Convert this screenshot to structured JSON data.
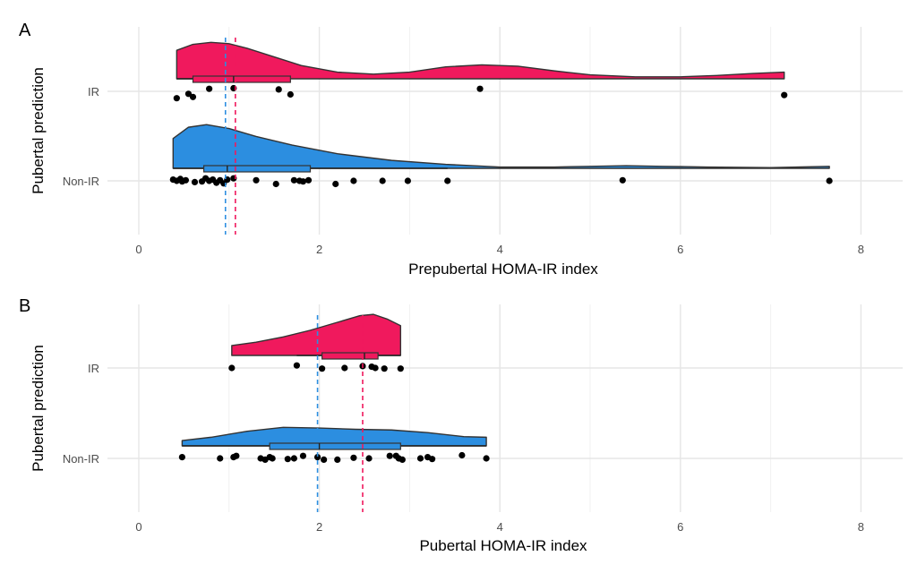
{
  "chart_data": [
    {
      "type": "raincloud",
      "panel_label": "A",
      "xlabel": "Prepubertal HOMA-IR index",
      "ylabel": "Pubertal prediction",
      "xlim": [
        -0.4,
        8.4
      ],
      "xticks": [
        0,
        2,
        4,
        6,
        8
      ],
      "categories": [
        "IR",
        "Non-IR"
      ],
      "grid": true,
      "series": [
        {
          "name": "IR",
          "color": "#f0195d",
          "density": [
            [
              0.42,
              0.43
            ],
            [
              0.6,
              0.52
            ],
            [
              0.8,
              0.55
            ],
            [
              1.0,
              0.53
            ],
            [
              1.2,
              0.46
            ],
            [
              1.5,
              0.33
            ],
            [
              1.8,
              0.2
            ],
            [
              2.2,
              0.1
            ],
            [
              2.6,
              0.07
            ],
            [
              3.0,
              0.1
            ],
            [
              3.4,
              0.18
            ],
            [
              3.8,
              0.21
            ],
            [
              4.2,
              0.19
            ],
            [
              4.6,
              0.12
            ],
            [
              5.0,
              0.06
            ],
            [
              5.5,
              0.03
            ],
            [
              6.0,
              0.03
            ],
            [
              6.4,
              0.05
            ],
            [
              6.8,
              0.08
            ],
            [
              7.15,
              0.1
            ]
          ],
          "box": {
            "q1": 0.6,
            "median": 1.05,
            "q3": 1.68,
            "whisker_low": 0.42,
            "whisker_high": 1.68
          },
          "points": [
            0.42,
            0.55,
            0.6,
            0.78,
            1.05,
            1.55,
            1.68,
            3.78,
            7.15
          ],
          "jitter": [
            0.55,
            0.2,
            0.45,
            -0.2,
            -0.25,
            -0.15,
            0.25,
            -0.2,
            0.3
          ],
          "mean_line": 1.07
        },
        {
          "name": "Non-IR",
          "color": "#2c8ee0",
          "density": [
            [
              0.38,
              0.45
            ],
            [
              0.55,
              0.62
            ],
            [
              0.75,
              0.66
            ],
            [
              1.0,
              0.6
            ],
            [
              1.3,
              0.48
            ],
            [
              1.7,
              0.35
            ],
            [
              2.2,
              0.22
            ],
            [
              2.8,
              0.12
            ],
            [
              3.4,
              0.06
            ],
            [
              4.0,
              0.02
            ],
            [
              4.6,
              0.02
            ],
            [
              5.0,
              0.03
            ],
            [
              5.4,
              0.04
            ],
            [
              5.8,
              0.03
            ],
            [
              6.3,
              0.02
            ],
            [
              7.0,
              0.01
            ],
            [
              7.65,
              0.03
            ]
          ],
          "box": {
            "q1": 0.72,
            "median": 0.98,
            "q3": 1.9,
            "whisker_low": 0.38,
            "whisker_high": 3.42
          },
          "points": [
            0.38,
            0.42,
            0.46,
            0.48,
            0.52,
            0.62,
            0.7,
            0.74,
            0.78,
            0.82,
            0.86,
            0.9,
            0.94,
            0.98,
            1.05,
            1.3,
            1.52,
            1.72,
            1.78,
            1.82,
            1.88,
            2.18,
            2.38,
            2.7,
            2.98,
            3.42,
            5.36,
            7.65
          ],
          "jitter": [
            -0.1,
            0.0,
            -0.15,
            0.05,
            -0.05,
            0.1,
            0.05,
            -0.2,
            0.0,
            -0.1,
            0.15,
            -0.05,
            0.2,
            -0.1,
            -0.2,
            -0.05,
            0.25,
            -0.05,
            0.0,
            0.05,
            -0.05,
            0.25,
            0.0,
            0.0,
            0.0,
            0.0,
            -0.05,
            0.0
          ],
          "mean_line": 0.96
        }
      ]
    },
    {
      "type": "raincloud",
      "panel_label": "B",
      "xlabel": "Pubertal HOMA-IR index",
      "ylabel": "Pubertal prediction",
      "xlim": [
        -0.4,
        8.4
      ],
      "xticks": [
        0,
        2,
        4,
        6,
        8
      ],
      "categories": [
        "IR",
        "Non-IR"
      ],
      "grid": true,
      "series": [
        {
          "name": "IR",
          "color": "#f0195d",
          "density": [
            [
              1.03,
              0.15
            ],
            [
              1.3,
              0.2
            ],
            [
              1.6,
              0.28
            ],
            [
              1.9,
              0.38
            ],
            [
              2.2,
              0.5
            ],
            [
              2.45,
              0.6
            ],
            [
              2.6,
              0.62
            ],
            [
              2.75,
              0.55
            ],
            [
              2.9,
              0.45
            ]
          ],
          "box": {
            "q1": 2.03,
            "median": 2.5,
            "q3": 2.65,
            "whisker_low": 1.75,
            "whisker_high": 2.9
          },
          "points": [
            1.03,
            1.75,
            2.03,
            2.28,
            2.48,
            2.58,
            2.62,
            2.72,
            2.9
          ],
          "jitter": [
            0.0,
            -0.2,
            0.05,
            0.0,
            -0.15,
            -0.1,
            0.0,
            0.05,
            0.05
          ],
          "mean_line": 2.48
        },
        {
          "name": "Non-IR",
          "color": "#2c8ee0",
          "density": [
            [
              0.48,
              0.08
            ],
            [
              0.8,
              0.13
            ],
            [
              1.2,
              0.22
            ],
            [
              1.6,
              0.28
            ],
            [
              2.0,
              0.27
            ],
            [
              2.4,
              0.25
            ],
            [
              2.8,
              0.24
            ],
            [
              3.2,
              0.2
            ],
            [
              3.6,
              0.14
            ],
            [
              3.85,
              0.13
            ]
          ],
          "box": {
            "q1": 1.45,
            "median": 2.0,
            "q3": 2.9,
            "whisker_low": 0.48,
            "whisker_high": 3.85
          },
          "points": [
            0.48,
            0.9,
            1.05,
            1.08,
            1.35,
            1.4,
            1.45,
            1.48,
            1.65,
            1.72,
            1.82,
            1.98,
            2.05,
            2.2,
            2.38,
            2.55,
            2.78,
            2.85,
            2.88,
            2.92,
            3.12,
            3.2,
            3.25,
            3.58,
            3.85
          ],
          "jitter": [
            -0.1,
            0.0,
            -0.1,
            -0.2,
            0.0,
            0.1,
            -0.1,
            0.0,
            0.05,
            0.0,
            -0.2,
            -0.1,
            0.1,
            0.1,
            -0.05,
            0.0,
            -0.2,
            -0.2,
            0.0,
            0.1,
            0.0,
            -0.1,
            0.05,
            -0.25,
            0.0
          ],
          "mean_line": 1.98
        }
      ]
    }
  ]
}
